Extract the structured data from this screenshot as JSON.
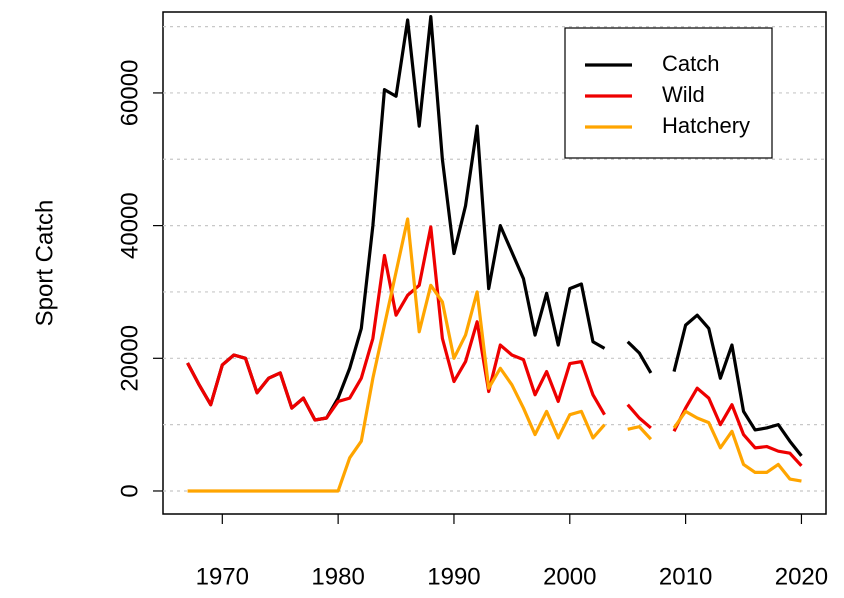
{
  "chart_data": {
    "type": "line",
    "ylabel": "Sport Catch",
    "x": [
      1967,
      1968,
      1969,
      1970,
      1971,
      1972,
      1973,
      1974,
      1975,
      1976,
      1977,
      1978,
      1979,
      1980,
      1981,
      1982,
      1983,
      1984,
      1985,
      1986,
      1987,
      1988,
      1989,
      1990,
      1991,
      1992,
      1993,
      1994,
      1995,
      1996,
      1997,
      1998,
      1999,
      2000,
      2001,
      2002,
      2003,
      2004,
      2005,
      2006,
      2007,
      2008,
      2009,
      2010,
      2011,
      2012,
      2013,
      2014,
      2015,
      2016,
      2017,
      2018,
      2019,
      2020
    ],
    "series": [
      {
        "name": "Catch",
        "color": "#000000",
        "values": [
          19300,
          16000,
          13000,
          19000,
          20500,
          20000,
          14800,
          17000,
          17800,
          12500,
          14000,
          10700,
          11000,
          14000,
          18500,
          24500,
          40000,
          60500,
          59500,
          71000,
          55000,
          71500,
          50000,
          35800,
          43000,
          55000,
          30500,
          40000,
          36000,
          32000,
          23500,
          29800,
          22000,
          30500,
          31200,
          22500,
          21500,
          null,
          22500,
          20800,
          17800,
          null,
          18000,
          25000,
          26500,
          24500,
          17000,
          22000,
          12000,
          9200,
          9500,
          10000,
          7500,
          5300
        ]
      },
      {
        "name": "Wild",
        "color": "#ee0000",
        "values": [
          19300,
          16000,
          13000,
          19000,
          20500,
          20000,
          14800,
          17000,
          17800,
          12500,
          14000,
          10700,
          11000,
          13500,
          14000,
          17000,
          23000,
          35500,
          26500,
          29500,
          31000,
          39800,
          23000,
          16500,
          19500,
          25500,
          15000,
          22000,
          20500,
          19800,
          14500,
          18000,
          13500,
          19200,
          19500,
          14500,
          11500,
          null,
          13000,
          11000,
          9500,
          null,
          9000,
          12500,
          15500,
          14000,
          10000,
          13000,
          8500,
          6500,
          6700,
          6000,
          5700,
          3800
        ]
      },
      {
        "name": "Hatchery",
        "color": "#ffa500",
        "values": [
          0,
          0,
          0,
          0,
          0,
          0,
          0,
          0,
          0,
          0,
          0,
          0,
          0,
          0,
          5000,
          7500,
          17000,
          25000,
          33000,
          41000,
          24000,
          31000,
          28500,
          20000,
          23500,
          30000,
          15500,
          18500,
          16000,
          12500,
          8500,
          12000,
          8000,
          11500,
          12000,
          8000,
          10000,
          null,
          9300,
          9700,
          7800,
          null,
          9500,
          12000,
          11000,
          10300,
          6500,
          9000,
          4000,
          2800,
          2800,
          4000,
          1800,
          1500
        ]
      }
    ],
    "xlim": [
      1964.88,
      2022.12
    ],
    "xticks": [
      1970,
      1980,
      1990,
      2000,
      2010,
      2020
    ],
    "ylim": [
      -3470,
      72200
    ],
    "yticks": [
      0,
      20000,
      40000,
      60000
    ],
    "grid_lines": [
      0,
      10000,
      20000,
      30000,
      40000,
      50000,
      60000,
      70000
    ],
    "legend": "topright"
  }
}
